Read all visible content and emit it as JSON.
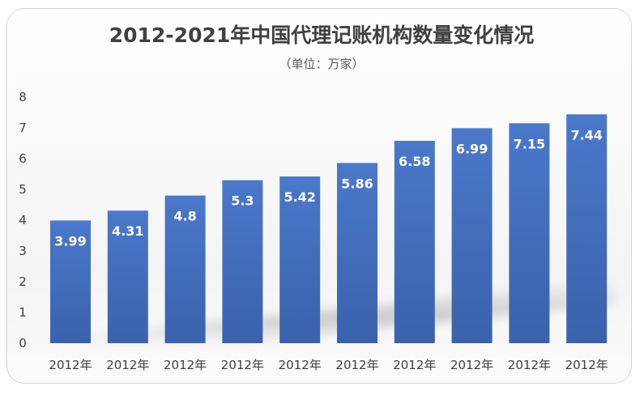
{
  "chart_data": {
    "type": "bar",
    "title": "2012-2021年中国代理记账机构数量变化情况",
    "subtitle": "（单位：万家）",
    "xlabel": "",
    "ylabel": "",
    "categories": [
      "2012年",
      "2012年",
      "2012年",
      "2012年",
      "2012年",
      "2012年",
      "2012年",
      "2012年",
      "2012年",
      "2012年"
    ],
    "values": [
      3.99,
      4.31,
      4.8,
      5.3,
      5.42,
      5.86,
      6.58,
      6.99,
      7.15,
      7.44
    ],
    "data_labels": [
      "3.99",
      "4.31",
      "4.8",
      "5.3",
      "5.42",
      "5.86",
      "6.58",
      "6.99",
      "7.15",
      "7.44"
    ],
    "ylim": [
      0,
      8
    ],
    "yticks": [
      "0",
      "1",
      "2",
      "3",
      "4",
      "5",
      "6",
      "7",
      "8"
    ],
    "grid": false,
    "legend": "none",
    "bar_color": "#4472c4"
  }
}
